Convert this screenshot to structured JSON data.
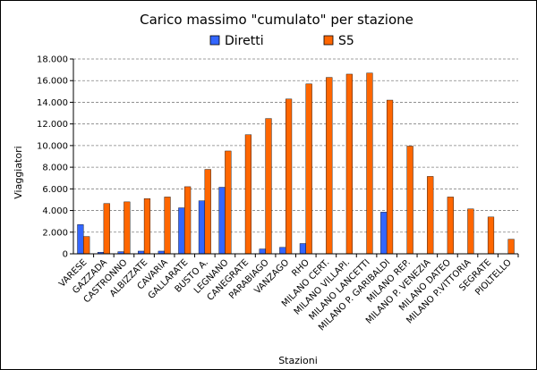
{
  "chart_data": {
    "type": "bar",
    "title": "Carico massimo \"cumulato\" per stazione",
    "xlabel": "Stazioni",
    "ylabel": "Viaggiatori",
    "ylim": [
      0,
      18000
    ],
    "yticks": [
      "0",
      "2.000",
      "4.000",
      "6.000",
      "8.000",
      "10.000",
      "12.000",
      "14.000",
      "16.000",
      "18.000"
    ],
    "grid": true,
    "legend_position": "top",
    "categories": [
      "VARESE",
      "GAZZADA",
      "CASTRONNO",
      "ALBIZZATE",
      "CAVARIA",
      "GALLARATE",
      "BUSTO A.",
      "LEGNANO",
      "CANEGRATE",
      "PARABIAGO",
      "VANZAGO",
      "RHO",
      "MILANO CERT.",
      "MILANO VILLAPI.",
      "MILANO LANCETTI",
      "MILANO P. GARIBALDI",
      "MILANO REP.",
      "MILANO P. VENEZIA",
      "MILANO DATEO",
      "MILANO P.VITTORIA",
      "SEGRATE",
      "PIOLTELLO"
    ],
    "series": [
      {
        "name": "Diretti",
        "color": "#3366ff",
        "values": [
          2700,
          150,
          200,
          250,
          250,
          4250,
          4900,
          6150,
          0,
          450,
          600,
          950,
          0,
          0,
          0,
          3850,
          0,
          0,
          0,
          0,
          0,
          0
        ]
      },
      {
        "name": "S5",
        "color": "#ff6600",
        "values": [
          1600,
          4650,
          4800,
          5100,
          5250,
          6200,
          7800,
          9500,
          11000,
          12500,
          14300,
          15700,
          16300,
          16600,
          16700,
          14200,
          9950,
          7150,
          5250,
          4150,
          3400,
          1350
        ]
      }
    ]
  }
}
